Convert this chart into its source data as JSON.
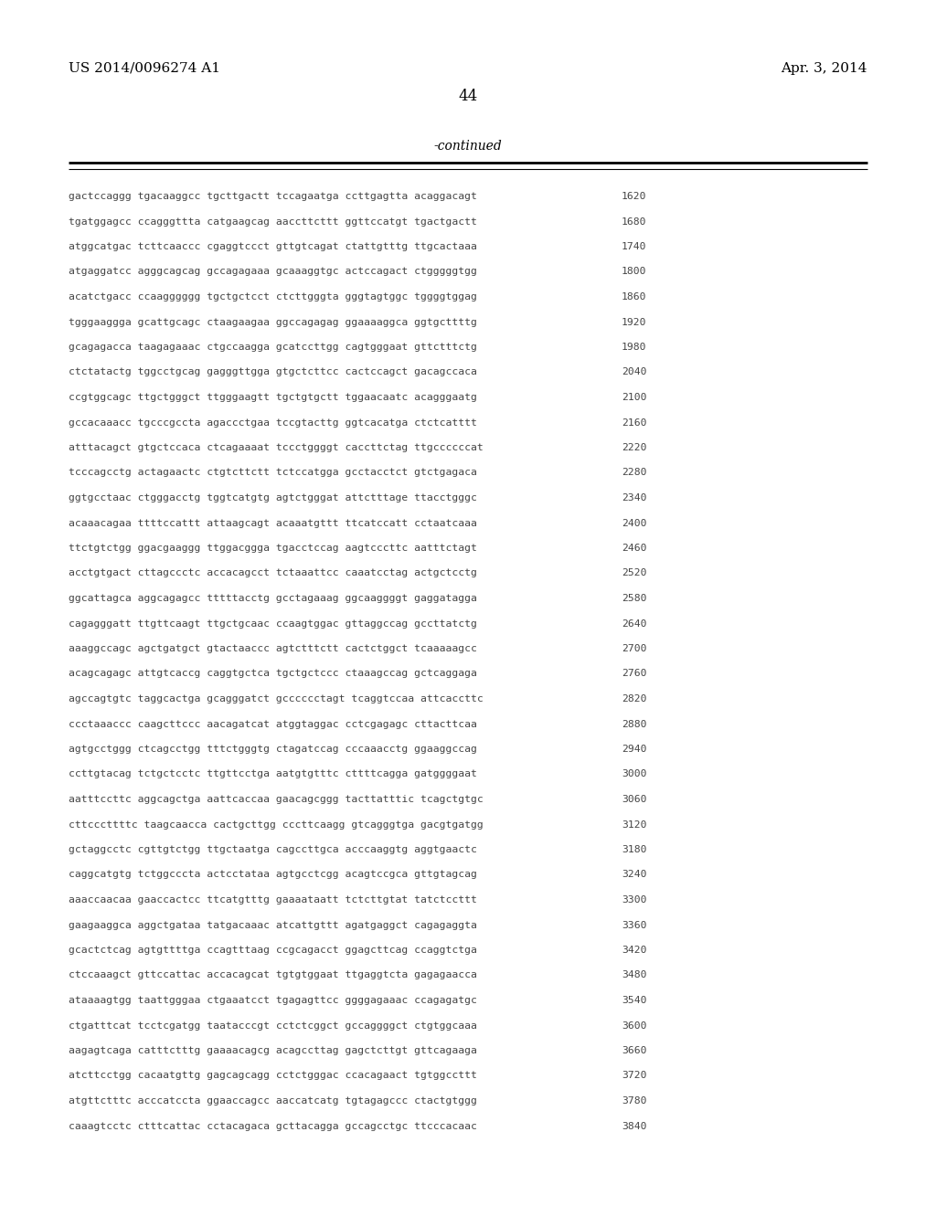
{
  "header_left": "US 2014/0096274 A1",
  "header_right": "Apr. 3, 2014",
  "page_number": "44",
  "continued_label": "-continued",
  "background_color": "#ffffff",
  "text_color": "#000000",
  "sequence_color": "#444444",
  "lines": [
    [
      "gactccaggg tgacaaggcc tgcttgactt tccagaatga ccttgagtta acaggacagt",
      "1620"
    ],
    [
      "tgatggagcc ccagggttta catgaagcag aaccttcttt ggttccatgt tgactgactt",
      "1680"
    ],
    [
      "atggcatgac tcttcaaccc cgaggtccct gttgtcagat ctattgtttg ttgcactaaa",
      "1740"
    ],
    [
      "atgaggatcc agggcagcag gccagagaaa gcaaaggtgc actccagact ctgggggtgg",
      "1800"
    ],
    [
      "acatctgacc ccaagggggg tgctgctcct ctcttgggta gggtagtggc tggggtggag",
      "1860"
    ],
    [
      "tgggaaggga gcattgcagc ctaagaagaa ggccagagag ggaaaaggca ggtgcttttg",
      "1920"
    ],
    [
      "gcagagacca taagagaaac ctgccaagga gcatccttgg cagtgggaat gttctttctg",
      "1980"
    ],
    [
      "ctctatactg tggcctgcag gagggttgga gtgctcttcc cactccagct gacagccaca",
      "2040"
    ],
    [
      "ccgtggcagc ttgctgggct ttgggaagtt tgctgtgctt tggaacaatc acagggaatg",
      "2100"
    ],
    [
      "gccacaaacc tgcccgccta agaccctgaa tccgtacttg ggtcacatga ctctcatttt",
      "2160"
    ],
    [
      "atttacagct gtgctccaca ctcagaaaat tccctggggt caccttctag ttgccccccat",
      "2220"
    ],
    [
      "tcccagcctg actagaactc ctgtcttctt tctccatgga gcctacctct gtctgagaca",
      "2280"
    ],
    [
      "ggtgcctaac ctgggacctg tggtcatgtg agtctgggat attctttage ttacctgggc",
      "2340"
    ],
    [
      "acaaacagaa ttttccattt attaagcagt acaaatgttt ttcatccatt cctaatcaaa",
      "2400"
    ],
    [
      "ttctgtctgg ggacgaaggg ttggacggga tgacctccag aagtcccttc aatttctagt",
      "2460"
    ],
    [
      "acctgtgact cttagccctc accacagcct tctaaattcc caaatcctag actgctcctg",
      "2520"
    ],
    [
      "ggcattagca aggcagagcc tttttacctg gcctagaaag ggcaaggggt gaggatagga",
      "2580"
    ],
    [
      "cagagggatt ttgttcaagt ttgctgcaac ccaagtggac gttaggccag gccttatctg",
      "2640"
    ],
    [
      "aaaggccagc agctgatgct gtactaaccc agtctttctt cactctggct tcaaaaagcc",
      "2700"
    ],
    [
      "acagcagagc attgtcaccg caggtgctca tgctgctccc ctaaagccag gctcaggaga",
      "2760"
    ],
    [
      "agccagtgtc taggcactga gcagggatct gcccccctagt tcaggtccaa attcaccttc",
      "2820"
    ],
    [
      "ccctaaaccc caagcttccc aacagatcat atggtaggac cctcgagagc cttacttcaa",
      "2880"
    ],
    [
      "agtgcctggg ctcagcctgg tttctgggtg ctagatccag cccaaacctg ggaaggccag",
      "2940"
    ],
    [
      "ccttgtacag tctgctcctc ttgttcctga aatgtgtttc cttttcagga gatggggaat",
      "3000"
    ],
    [
      "aatttccttc aggcagctga aattcaccaa gaacagcggg tacttatttic tcagctgtgc",
      "3060"
    ],
    [
      "cttcccttttc taagcaacca cactgcttgg cccttcaagg gtcagggtga gacgtgatgg",
      "3120"
    ],
    [
      "gctaggcctc cgttgtctgg ttgctaatga cagccttgca acccaaggtg aggtgaactc",
      "3180"
    ],
    [
      "caggcatgtg tctggcccta actcctataa agtgcctcgg acagtccgca gttgtagcag",
      "3240"
    ],
    [
      "aaaccaacaa gaaccactcc ttcatgtttg gaaaataatt tctcttgtat tatctccttt",
      "3300"
    ],
    [
      "gaagaaggca aggctgataa tatgacaaac atcattgttt agatgaggct cagagaggta",
      "3360"
    ],
    [
      "gcactctcag agtgttttga ccagtttaag ccgcagacct ggagcttcag ccaggtctga",
      "3420"
    ],
    [
      "ctccaaagct gttccattac accacagcat tgtgtggaat ttgaggtcta gagagaacca",
      "3480"
    ],
    [
      "ataaaagtgg taattgggaa ctgaaatcct tgagagttcc ggggagaaac ccagagatgc",
      "3540"
    ],
    [
      "ctgatttcat tcctcgatgg taatacccgt cctctcggct gccaggggct ctgtggcaaa",
      "3600"
    ],
    [
      "aagagtcaga catttctttg gaaaacagcg acagccttag gagctcttgt gttcagaaga",
      "3660"
    ],
    [
      "atcttcctgg cacaatgttg gagcagcagg cctctgggac ccacagaact tgtggccttt",
      "3720"
    ],
    [
      "atgttctttc acccatccta ggaaccagcc aaccatcatg tgtagagccc ctactgtggg",
      "3780"
    ],
    [
      "caaagtcctc ctttcattac cctacagaca gcttacagga gccagcctgc ttcccacaac",
      "3840"
    ]
  ]
}
